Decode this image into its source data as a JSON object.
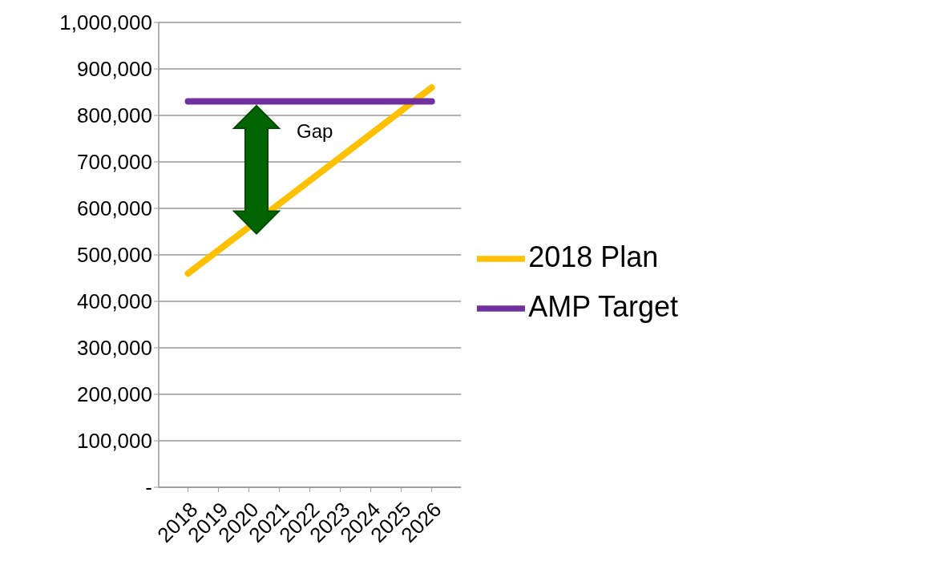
{
  "chart_data": {
    "type": "line",
    "categories": [
      "2018",
      "2019",
      "2020",
      "2021",
      "2022",
      "2023",
      "2024",
      "2025",
      "2026"
    ],
    "series": [
      {
        "name": "2018 Plan",
        "color": "#ffc000",
        "values": [
          460000,
          510000,
          560000,
          610000,
          660000,
          710000,
          760000,
          810000,
          860000
        ]
      },
      {
        "name": "AMP Target",
        "color": "#7030a0",
        "values": [
          830000,
          830000,
          830000,
          830000,
          830000,
          830000,
          830000,
          830000,
          830000
        ]
      }
    ],
    "ylim": [
      0,
      1000000
    ],
    "yticks": [
      {
        "value": 0,
        "label": "-"
      },
      {
        "value": 100000,
        "label": "100,000"
      },
      {
        "value": 200000,
        "label": "200,000"
      },
      {
        "value": 300000,
        "label": "300,000"
      },
      {
        "value": 400000,
        "label": "400,000"
      },
      {
        "value": 500000,
        "label": "500,000"
      },
      {
        "value": 600000,
        "label": "600,000"
      },
      {
        "value": 700000,
        "label": "700,000"
      },
      {
        "value": 800000,
        "label": "800,000"
      },
      {
        "value": 900000,
        "label": "900,000"
      },
      {
        "value": 1000000,
        "label": "1,000,000"
      }
    ],
    "grid": "y",
    "legend": "right",
    "marker": "none",
    "line_style": "solid",
    "annotations": [
      "Gap"
    ]
  }
}
